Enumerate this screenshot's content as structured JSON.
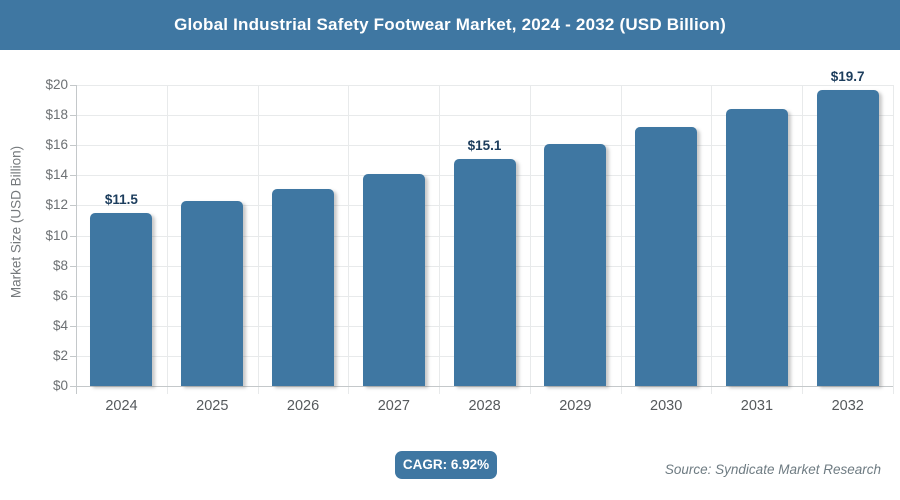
{
  "header": {
    "title": "Global Industrial Safety Footwear Market, 2024 - 2032 (USD Billion)"
  },
  "chart_data": {
    "type": "bar",
    "categories": [
      "2024",
      "2025",
      "2026",
      "2027",
      "2028",
      "2029",
      "2030",
      "2031",
      "2032"
    ],
    "values": [
      11.5,
      12.3,
      13.1,
      14.1,
      15.1,
      16.1,
      17.2,
      18.4,
      19.7
    ],
    "data_labels": [
      "$11.5",
      "",
      "",
      "",
      "$15.1",
      "",
      "",
      "",
      "$19.7"
    ],
    "title": "Global Industrial Safety Footwear Market, 2024 - 2032 (USD Billion)",
    "xlabel": "",
    "ylabel": "Market Size (USD Billion)",
    "ylim": [
      0,
      20
    ],
    "ytick_step": 2,
    "ytick_labels": [
      "$0",
      "$2",
      "$4",
      "$6",
      "$8",
      "$10",
      "$12",
      "$14",
      "$16",
      "$18",
      "$20"
    ],
    "grid": true,
    "legend": false
  },
  "footer": {
    "cagr_label": "CAGR: 6.92%",
    "source": "Source: Syndicate Market Research"
  },
  "colors": {
    "accent": "#3f77a2",
    "bar": "#3f77a2",
    "bar_label_text": "#1c3d5d",
    "grid_line": "#e8eaeb",
    "axis_line": "#c4c8ca",
    "ytick_text": "#6c7073",
    "xtick_text": "#55595c",
    "source_text": "#6e7b82",
    "header_text": "#ffffff"
  }
}
